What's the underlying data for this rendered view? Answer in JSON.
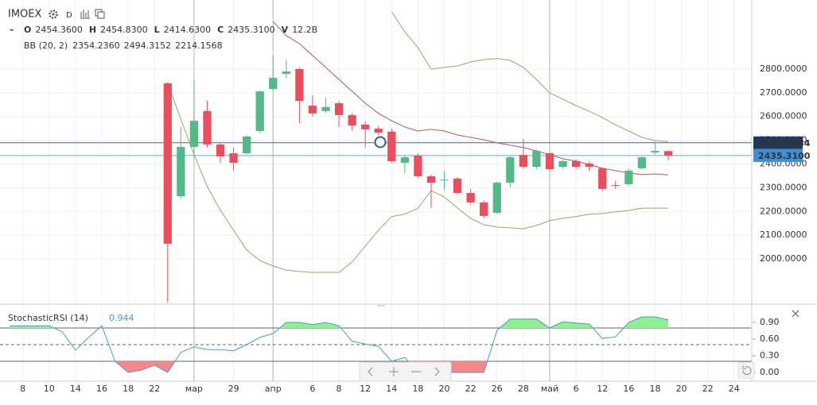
{
  "header": {
    "symbol": "IMOEX",
    "interval": "D",
    "ohlcv": [
      {
        "key": "O",
        "value": "2454.3600"
      },
      {
        "key": "H",
        "value": "2454.8300"
      },
      {
        "key": "L",
        "value": "2414.6300"
      },
      {
        "key": "C",
        "value": "2435.3100"
      },
      {
        "key": "V",
        "value": "12.2B"
      }
    ]
  },
  "chart_data": [
    {
      "type": "candlestick",
      "x": [
        0,
        1,
        2,
        3,
        4,
        5,
        6,
        7,
        8,
        9,
        10,
        11,
        12,
        13,
        14,
        15,
        16,
        17,
        18,
        19,
        20,
        21,
        22,
        23,
        24,
        25,
        26,
        27,
        28,
        29,
        30,
        31,
        32,
        33,
        34,
        35,
        36,
        37,
        38
      ],
      "open": [
        2740,
        2264,
        2472,
        2623,
        2482,
        2445,
        2445,
        2539,
        2716,
        2780,
        2800,
        2646,
        2623,
        2656,
        2606,
        2566,
        2549,
        2536,
        2405,
        2435,
        2348,
        2331,
        2338,
        2278,
        2238,
        2194,
        2321,
        2438,
        2388,
        2445,
        2388,
        2412,
        2402,
        2382,
        2311,
        2315,
        2382,
        2448,
        2454.36
      ],
      "high": [
        2745,
        2556,
        2756,
        2666,
        2490,
        2470,
        2520,
        2710,
        2857,
        2840,
        2805,
        2690,
        2680,
        2665,
        2615,
        2580,
        2560,
        2550,
        2435,
        2445,
        2355,
        2370,
        2345,
        2295,
        2245,
        2325,
        2435,
        2505,
        2460,
        2450,
        2418,
        2420,
        2410,
        2385,
        2330,
        2380,
        2432,
        2495,
        2454.83
      ],
      "low": [
        1800,
        2254,
        2440,
        2470,
        2405,
        2371,
        2440,
        2530,
        2710,
        2760,
        2572,
        2600,
        2615,
        2556,
        2540,
        2470,
        2520,
        2405,
        2360,
        2340,
        2214,
        2290,
        2270,
        2230,
        2170,
        2190,
        2300,
        2380,
        2380,
        2370,
        2380,
        2380,
        2370,
        2285,
        2295,
        2310,
        2378,
        2440,
        2414.63
      ],
      "close": [
        2064,
        2472,
        2582,
        2482,
        2432,
        2405,
        2516,
        2706,
        2763,
        2790,
        2666,
        2613,
        2640,
        2606,
        2562,
        2546,
        2532,
        2412,
        2428,
        2348,
        2321,
        2334,
        2278,
        2238,
        2181,
        2321,
        2428,
        2388,
        2455,
        2378,
        2412,
        2388,
        2388,
        2295,
        2309,
        2372,
        2428,
        2455,
        2435.31
      ],
      "up_color": "#53b987",
      "down_color": "#eb4d5c",
      "indicator": {
        "label": "BB (20, 2)",
        "values": [
          {
            "text": "2354.2360",
            "color": "#b05a5a"
          },
          {
            "text": "2494.3152",
            "color": "#86a05a"
          },
          {
            "text": "2214.1568",
            "color": "#86a05a"
          }
        ]
      },
      "overlays": [
        {
          "color": "#b05a5a",
          "values": [
            null,
            null,
            null,
            null,
            null,
            null,
            null,
            null,
            3000,
            2941,
            2907,
            2857,
            2807,
            2756,
            2706,
            2656,
            2613,
            2582,
            2556,
            2539,
            2546,
            2539,
            2522,
            2512,
            2502,
            2489,
            2479,
            2469,
            2455,
            2439,
            2422,
            2412,
            2398,
            2382,
            2372,
            2362,
            2355,
            2358,
            2354
          ]
        },
        {
          "color": "#9aa56b",
          "values": [
            null,
            null,
            null,
            null,
            null,
            null,
            null,
            null,
            null,
            null,
            null,
            null,
            null,
            null,
            null,
            null,
            null,
            3041,
            2957,
            2890,
            2800,
            2807,
            2813,
            2830,
            2840,
            2844,
            2837,
            2807,
            2756,
            2699,
            2673,
            2646,
            2622,
            2596,
            2565,
            2539,
            2512,
            2499,
            2494
          ]
        },
        {
          "color": "#9aa56b",
          "values": [
            2740,
            2589,
            2439,
            2305,
            2205,
            2121,
            2038,
            1993,
            1970,
            1953,
            1947,
            1943,
            1943,
            1943,
            1987,
            2054,
            2121,
            2178,
            2188,
            2214,
            2288,
            2261,
            2214,
            2171,
            2144,
            2134,
            2131,
            2127,
            2141,
            2161,
            2171,
            2178,
            2188,
            2191,
            2198,
            2204,
            2214,
            2214,
            2214
          ]
        }
      ],
      "price_lines": [
        {
          "value": 2489.2884,
          "color": "#1d3a5c"
        },
        {
          "value": 2435.31,
          "label": "2435.3100",
          "color": "#3d8fd6"
        }
      ],
      "xlim": [
        -12.73,
        44.34
      ],
      "ylim": [
        1816,
        3091
      ],
      "yticks": [
        {
          "value": 2000,
          "label": "2000.0000"
        },
        {
          "value": 2100,
          "label": "2100.0000"
        },
        {
          "value": 2200,
          "label": "2200.0000"
        },
        {
          "value": 2300,
          "label": "2300.0000"
        },
        {
          "value": 2400,
          "label": "2400.0000"
        },
        {
          "value": 2500,
          "label": "2500.0000"
        },
        {
          "value": 2600,
          "label": "2600.0000"
        },
        {
          "value": 2700,
          "label": "2700.0000"
        },
        {
          "value": 2800,
          "label": "2800.0000"
        }
      ],
      "xticks": [
        {
          "value": -11,
          "label": "8"
        },
        {
          "value": -9,
          "label": "10"
        },
        {
          "value": -7,
          "label": "14"
        },
        {
          "value": -5,
          "label": "16"
        },
        {
          "value": -3,
          "label": "18"
        },
        {
          "value": -1,
          "label": "22"
        },
        {
          "value": 2,
          "label": "мар"
        },
        {
          "value": 5,
          "label": "29"
        },
        {
          "value": 8,
          "label": "апр"
        },
        {
          "value": 11,
          "label": "6"
        },
        {
          "value": 13,
          "label": "8"
        },
        {
          "value": 15,
          "label": "12"
        },
        {
          "value": 17,
          "label": "14"
        },
        {
          "value": 19,
          "label": "18"
        },
        {
          "value": 21,
          "label": "20"
        },
        {
          "value": 23,
          "label": "22"
        },
        {
          "value": 25,
          "label": "26"
        },
        {
          "value": 27,
          "label": "28"
        },
        {
          "value": 29,
          "label": "май"
        },
        {
          "value": 31,
          "label": "6"
        },
        {
          "value": 33,
          "label": "12"
        },
        {
          "value": 35,
          "label": "16"
        },
        {
          "value": 37,
          "label": "18"
        },
        {
          "value": 39,
          "label": "20"
        },
        {
          "value": 41,
          "label": "22"
        },
        {
          "value": 43,
          "label": "24"
        }
      ],
      "grid": true
    },
    {
      "type": "line",
      "title": "StochasticRSI (14)",
      "legend_value": 0.944,
      "color": "#4a9bc7",
      "x": [
        -12,
        -11,
        -10,
        -9,
        -8,
        -7,
        -6,
        -5,
        -4,
        -3,
        -2,
        -1,
        0,
        1,
        2,
        3,
        4,
        5,
        6,
        7,
        8,
        9,
        10,
        11,
        12,
        13,
        14,
        15,
        16,
        17,
        18,
        19,
        20,
        21,
        22,
        23,
        24,
        25,
        26,
        27,
        28,
        29,
        30,
        31,
        32,
        33,
        34,
        35,
        36,
        37,
        38
      ],
      "values": [
        0.84,
        0.84,
        0.84,
        0.84,
        0.73,
        0.4,
        0.63,
        0.84,
        0.2,
        0.0,
        0.04,
        0.13,
        0.0,
        0.36,
        0.46,
        0.41,
        0.41,
        0.39,
        0.5,
        0.63,
        0.7,
        0.9,
        0.9,
        0.86,
        0.9,
        0.84,
        0.56,
        0.51,
        0.47,
        0.2,
        0.27,
        0.0,
        0.0,
        0.0,
        0.0,
        0.0,
        0.0,
        0.76,
        0.96,
        0.96,
        0.96,
        0.8,
        0.91,
        0.89,
        0.87,
        0.61,
        0.64,
        0.9,
        1.0,
        1.0,
        0.944
      ],
      "levels": [
        {
          "value": 0.8
        },
        {
          "value": 0.5,
          "dash": true
        },
        {
          "value": 0.2
        }
      ],
      "fill_above_color": "#8ef08e",
      "fill_below_color": "#f6878c",
      "xlim": [
        -12.73,
        44.34
      ],
      "ylim": [
        -0.157,
        1.186
      ],
      "yticks": [
        {
          "value": 0.9,
          "label": "0.90"
        },
        {
          "value": 0.6,
          "label": "0.60"
        },
        {
          "value": 0.3,
          "label": "0.30"
        },
        {
          "value": 0,
          "label": "0.00"
        }
      ]
    }
  ]
}
